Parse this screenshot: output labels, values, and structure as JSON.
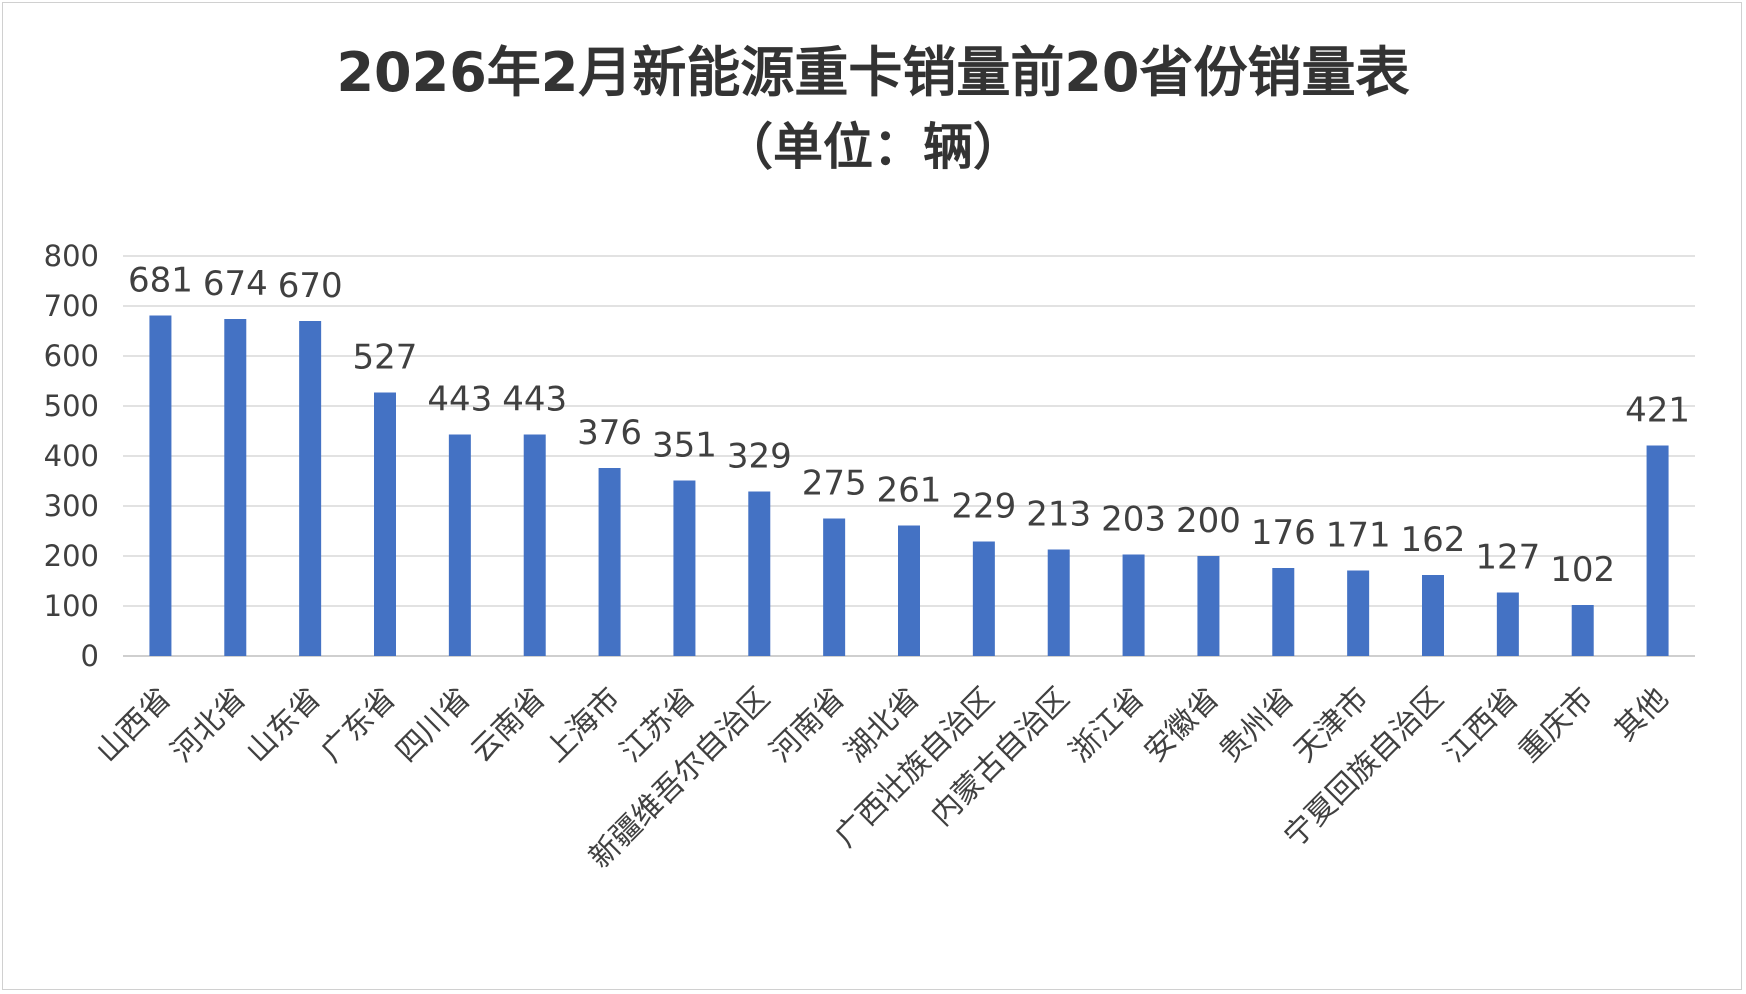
{
  "chart_data": {
    "type": "bar",
    "title": "2026年2月新能源重卡销量前20省份销量表",
    "subtitle": "（单位：辆）",
    "categories": [
      "山西省",
      "河北省",
      "山东省",
      "广东省",
      "四川省",
      "云南省",
      "上海市",
      "江苏省",
      "新疆维吾尔自治区",
      "河南省",
      "湖北省",
      "广西壮族自治区",
      "内蒙古自治区",
      "浙江省",
      "安徽省",
      "贵州省",
      "天津市",
      "宁夏回族自治区",
      "江西省",
      "重庆市",
      "其他"
    ],
    "values": [
      681,
      674,
      670,
      527,
      443,
      443,
      376,
      351,
      329,
      275,
      261,
      229,
      213,
      203,
      200,
      176,
      171,
      162,
      127,
      102,
      421
    ],
    "ylim": [
      0,
      800
    ],
    "yticks": [
      0,
      100,
      200,
      300,
      400,
      500,
      600,
      700,
      800
    ],
    "xlabel": "",
    "ylabel": "",
    "grid": true,
    "bar_color": "#4472C4"
  }
}
